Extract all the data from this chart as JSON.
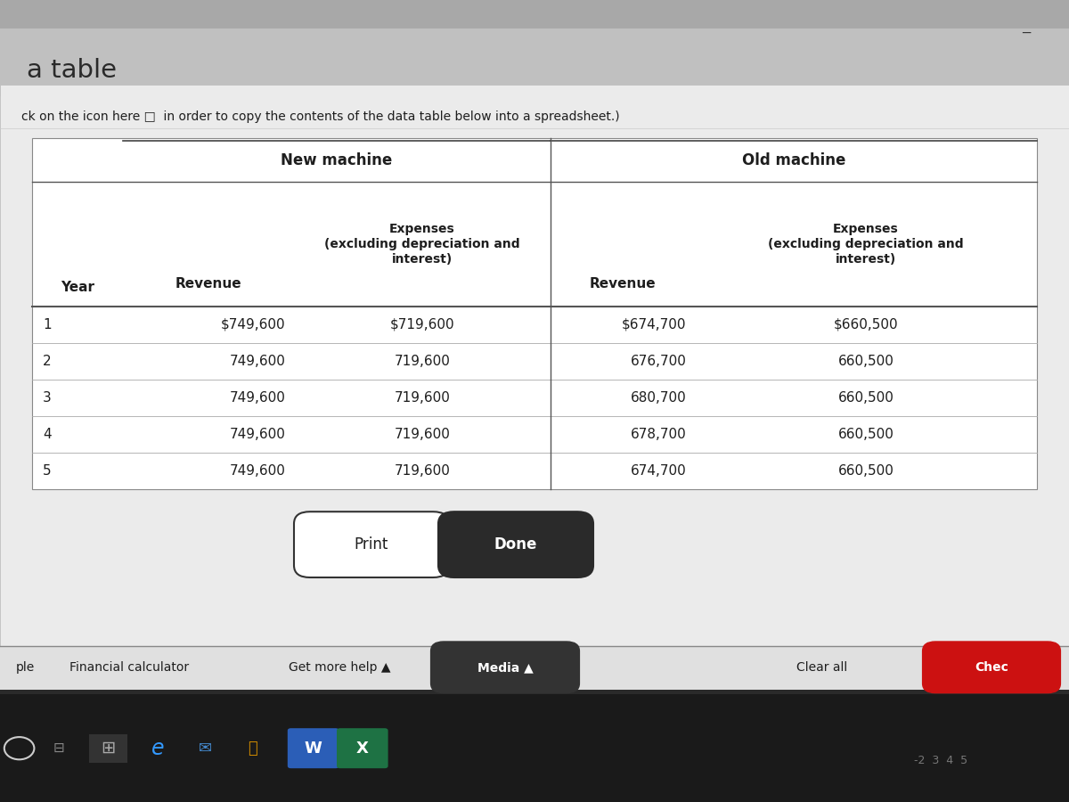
{
  "page_title": "a table",
  "instruction_text": "ck on the icon here □  in order to copy the contents of the data table below into a spreadsheet.)",
  "new_machine_header": "New machine",
  "old_machine_header": "Old machine",
  "col_year": "Year",
  "col_new_revenue": "Revenue",
  "col_new_expenses": "Expenses\n(excluding depreciation and\ninterest)",
  "col_old_revenue": "Revenue",
  "col_old_expenses": "Expenses\n(excluding depreciation and\ninterest)",
  "years": [
    1,
    2,
    3,
    4,
    5
  ],
  "new_revenue": [
    "$749,600",
    "749,600",
    "749,600",
    "749,600",
    "749,600"
  ],
  "new_expenses": [
    "$719,600",
    "719,600",
    "719,600",
    "719,600",
    "719,600"
  ],
  "old_revenue": [
    "$674,700",
    "676,700",
    "680,700",
    "678,700",
    "674,700"
  ],
  "old_expenses": [
    "$660,500",
    "660,500",
    "660,500",
    "660,500",
    "660,500"
  ],
  "top_bar_color": "#c0c0c0",
  "page_bg": "#d4d4d4",
  "content_bg": "#ebebeb",
  "table_bg": "#f0f0f0",
  "white": "#ffffff",
  "text_dark": "#1e1e1e",
  "line_color": "#555555",
  "done_btn_bg": "#2a2a2a",
  "media_btn_bg": "#333333",
  "chec_btn_bg": "#cc1111",
  "footer_bg": "#e0e0e0",
  "taskbar_bg": "#1a1a1a",
  "print_label": "Print",
  "done_label": "Done",
  "footer_ple": "ple",
  "footer_fc": "Financial calculator",
  "footer_help": "Get more help ▲",
  "footer_media": "Media ▲",
  "footer_clear": "Clear all",
  "footer_chec": "Chec"
}
